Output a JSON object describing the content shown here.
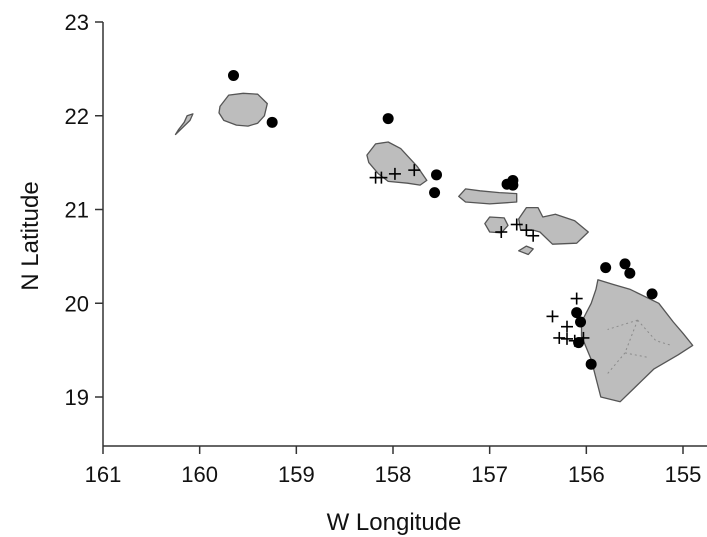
{
  "chart_data": {
    "type": "scatter",
    "xlabel": "W Longitude",
    "ylabel": "N Latitude",
    "xlim": [
      161,
      155
    ],
    "ylim": [
      18.5,
      23
    ],
    "x_ticks": [
      161,
      160,
      159,
      158,
      157,
      156,
      155
    ],
    "y_ticks": [
      19,
      20,
      21,
      22,
      23
    ],
    "x_tick_labels": [
      "161",
      "160",
      "159",
      "158",
      "157",
      "156",
      "155"
    ],
    "y_tick_labels": [
      "19",
      "20",
      "21",
      "22",
      "23"
    ],
    "grid": false,
    "legend": "none",
    "land_color": "#bdbdbd",
    "outline_color": "#555555",
    "series": [
      {
        "marker": "circle",
        "color": "#000000",
        "points": [
          {
            "x": 159.65,
            "y": 22.43
          },
          {
            "x": 159.25,
            "y": 21.93
          },
          {
            "x": 158.05,
            "y": 21.97
          },
          {
            "x": 157.55,
            "y": 21.37
          },
          {
            "x": 157.57,
            "y": 21.18
          },
          {
            "x": 156.82,
            "y": 21.27
          },
          {
            "x": 156.76,
            "y": 21.31
          },
          {
            "x": 156.76,
            "y": 21.26
          },
          {
            "x": 155.8,
            "y": 20.38
          },
          {
            "x": 155.6,
            "y": 20.42
          },
          {
            "x": 155.55,
            "y": 20.32
          },
          {
            "x": 155.32,
            "y": 20.1
          },
          {
            "x": 156.1,
            "y": 19.9
          },
          {
            "x": 156.06,
            "y": 19.8
          },
          {
            "x": 156.08,
            "y": 19.58
          },
          {
            "x": 155.95,
            "y": 19.35
          }
        ]
      },
      {
        "marker": "plus",
        "color": "#000000",
        "points": [
          {
            "x": 158.18,
            "y": 21.34
          },
          {
            "x": 158.12,
            "y": 21.34
          },
          {
            "x": 157.98,
            "y": 21.38
          },
          {
            "x": 157.78,
            "y": 21.42
          },
          {
            "x": 156.88,
            "y": 20.76
          },
          {
            "x": 156.72,
            "y": 20.84
          },
          {
            "x": 156.62,
            "y": 20.78
          },
          {
            "x": 156.55,
            "y": 20.72
          },
          {
            "x": 156.1,
            "y": 20.05
          },
          {
            "x": 156.35,
            "y": 19.86
          },
          {
            "x": 156.2,
            "y": 19.75
          },
          {
            "x": 156.28,
            "y": 19.63
          },
          {
            "x": 156.2,
            "y": 19.62
          },
          {
            "x": 156.12,
            "y": 19.6
          },
          {
            "x": 156.03,
            "y": 19.63
          }
        ]
      }
    ]
  }
}
